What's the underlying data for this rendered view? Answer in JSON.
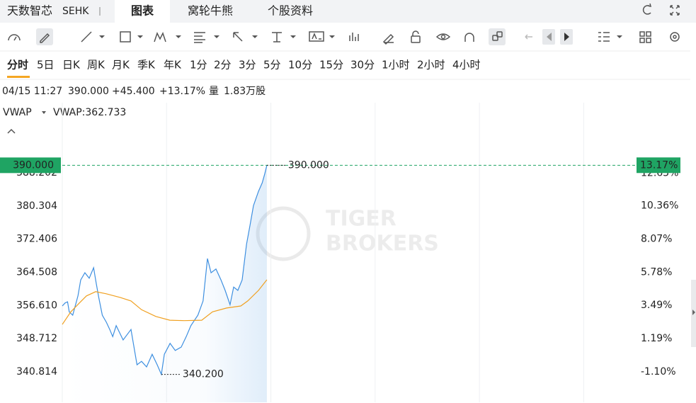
{
  "header": {
    "name": "天数智芯",
    "market": "SEHK",
    "tabs": [
      "图表",
      "窝轮牛熊",
      "个股资料"
    ]
  },
  "periods": [
    "分时",
    "5日",
    "日K",
    "周K",
    "月K",
    "季K",
    "年K",
    "1分",
    "2分",
    "3分",
    "5分",
    "10分",
    "15分",
    "30分",
    "1小时",
    "2小时",
    "4小时"
  ],
  "quote": {
    "time": "04/15 11:27",
    "price": "390.000",
    "change": "+45.400",
    "change_pct": "+13.17%",
    "volume_label": "量",
    "volume": "1.83万股"
  },
  "indicator": {
    "name": "VWAP",
    "value": "VWAP:362.733"
  },
  "watermark": [
    "TIGER",
    "BROKERS"
  ],
  "chart_data": {
    "type": "line",
    "xlim": [
      0,
      330
    ],
    "xticks": [
      0,
      60,
      120,
      180,
      240,
      300
    ],
    "ylim": [
      333.56,
      404.9
    ],
    "yticks": [
      388.202,
      380.304,
      372.406,
      364.508,
      {
        "value": 356.61,
        "label": "356.610"
      },
      348.712,
      340.814
    ],
    "y2lim": [
      -3.21,
      17.49
    ],
    "y2ticks": [
      {
        "value": 12.63,
        "label": "12.63%"
      },
      {
        "value": 10.36,
        "label": "10.36%"
      },
      {
        "value": 8.07,
        "label": "8.07%"
      },
      {
        "value": 5.78,
        "label": "5.78%"
      },
      {
        "value": 3.49,
        "label": "3.49%"
      },
      {
        "value": 1.19,
        "label": "1.19%"
      },
      {
        "value": -1.1,
        "label": "-1.10%"
      }
    ],
    "grid": true,
    "up_color": "#1fa463",
    "down_color": "#e84b4b",
    "series": [
      {
        "color": "#3d8fe0",
        "x": [
          0,
          1.6,
          3,
          4,
          6,
          9,
          10.6,
          13,
          15.5,
          18,
          19.5,
          21,
          23,
          25.4,
          27.3,
          29,
          31,
          33,
          35,
          39.5,
          43,
          45.6,
          48.5,
          51.7,
          54.6,
          57,
          58.7,
          62,
          65,
          68.4,
          71.3,
          74,
          78,
          81,
          83.5,
          85.6,
          88.4,
          91.3,
          93.7,
          96.5,
          98.6,
          101,
          103.5,
          106,
          108,
          110,
          112.9,
          115,
          116.5,
          117.7
        ],
        "values": [
          356.5,
          357.2,
          357.5,
          355.1,
          354.3,
          358.9,
          362.7,
          364.4,
          363.1,
          365.6,
          361.9,
          358.5,
          354.3,
          352.6,
          350.9,
          349.2,
          351.8,
          350.1,
          348.4,
          350.9,
          342.5,
          343.3,
          342.0,
          345.0,
          342.5,
          340.2,
          345.0,
          347.6,
          345.9,
          346.7,
          349.2,
          351.8,
          354.3,
          357.7,
          367.8,
          364.4,
          365.3,
          362.7,
          360.2,
          356.8,
          361.0,
          360.2,
          362.7,
          371.2,
          375.7,
          380.4,
          383.8,
          385.8,
          388.0,
          390.0
        ]
      },
      {
        "name": "VWAP",
        "color": "#f0a020",
        "x": [
          0,
          4.9,
          9.8,
          13.9,
          19.2,
          25.3,
          33.4,
          39.5,
          45.6,
          53.8,
          61.9,
          70.1,
          80.2,
          86.4,
          94.5,
          102.7,
          106.7,
          112.9,
          117.7
        ],
        "values": [
          352.1,
          355.1,
          357.2,
          358.9,
          359.9,
          359.4,
          358.5,
          357.7,
          355.6,
          354.0,
          353.1,
          353.0,
          353.1,
          355.1,
          356.0,
          356.5,
          357.7,
          360.2,
          362.733
        ]
      }
    ],
    "last_price": {
      "value": 390,
      "label": "390.000"
    },
    "last_pct": {
      "value": 13.17,
      "label": "13.17%"
    },
    "annotations": [
      {
        "x": 117.7,
        "value": 390,
        "label": "390.000"
      },
      {
        "x": 57,
        "value": 340.2,
        "label": "340.200"
      }
    ]
  }
}
